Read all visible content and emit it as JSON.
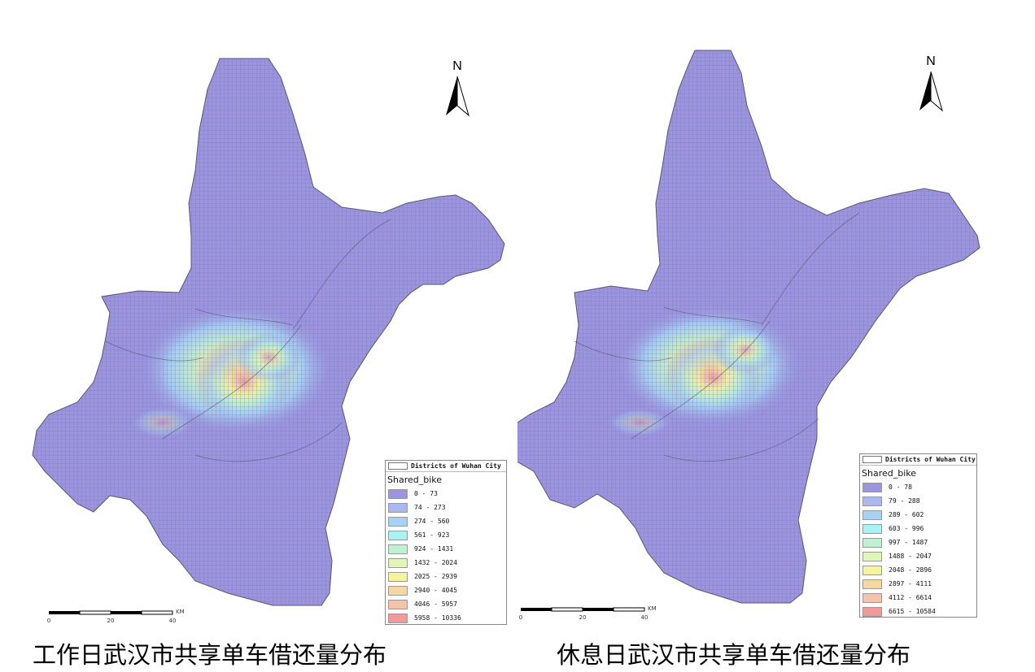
{
  "maps": [
    {
      "caption": "工作日武汉市共享单车借还量分布",
      "north_label": "N",
      "legend": {
        "boundary_label": "Districts of Wuhan City",
        "field": "Shared_bike",
        "classes": [
          {
            "label": "0 - 73",
            "color": "#9b94de"
          },
          {
            "label": "74 - 273",
            "color": "#a9b8ee"
          },
          {
            "label": "274 - 560",
            "color": "#a6d2f4"
          },
          {
            "label": "561 - 923",
            "color": "#a6f2f4"
          },
          {
            "label": "924 - 1431",
            "color": "#bff2d2"
          },
          {
            "label": "1432 - 2024",
            "color": "#dff6b8"
          },
          {
            "label": "2025 - 2939",
            "color": "#f4f49e"
          },
          {
            "label": "2940 - 4045",
            "color": "#f6d7a0"
          },
          {
            "label": "4046 - 5957",
            "color": "#f6c2aa"
          },
          {
            "label": "5958 - 10336",
            "color": "#f29a9a"
          }
        ]
      },
      "scalebar": {
        "unit": "KM",
        "ticks": [
          "0",
          "20",
          "40"
        ]
      }
    },
    {
      "caption": "休息日武汉市共享单车借还量分布",
      "north_label": "N",
      "legend": {
        "boundary_label": "Districts of Wuhan City",
        "field": "Shared_bike",
        "classes": [
          {
            "label": "0 - 78",
            "color": "#9b94de"
          },
          {
            "label": "79 - 288",
            "color": "#a9b8ee"
          },
          {
            "label": "289 - 602",
            "color": "#a6d2f4"
          },
          {
            "label": "603 - 996",
            "color": "#a6f2f4"
          },
          {
            "label": "997 - 1487",
            "color": "#bff2d2"
          },
          {
            "label": "1488 - 2047",
            "color": "#dff6b8"
          },
          {
            "label": "2048 - 2896",
            "color": "#f4f49e"
          },
          {
            "label": "2897 - 4111",
            "color": "#f6d7a0"
          },
          {
            "label": "4112 - 6614",
            "color": "#f6c2aa"
          },
          {
            "label": "6615 - 10584",
            "color": "#f29a9a"
          }
        ]
      },
      "scalebar": {
        "unit": "KM",
        "ticks": [
          "0",
          "20",
          "40"
        ]
      }
    }
  ]
}
